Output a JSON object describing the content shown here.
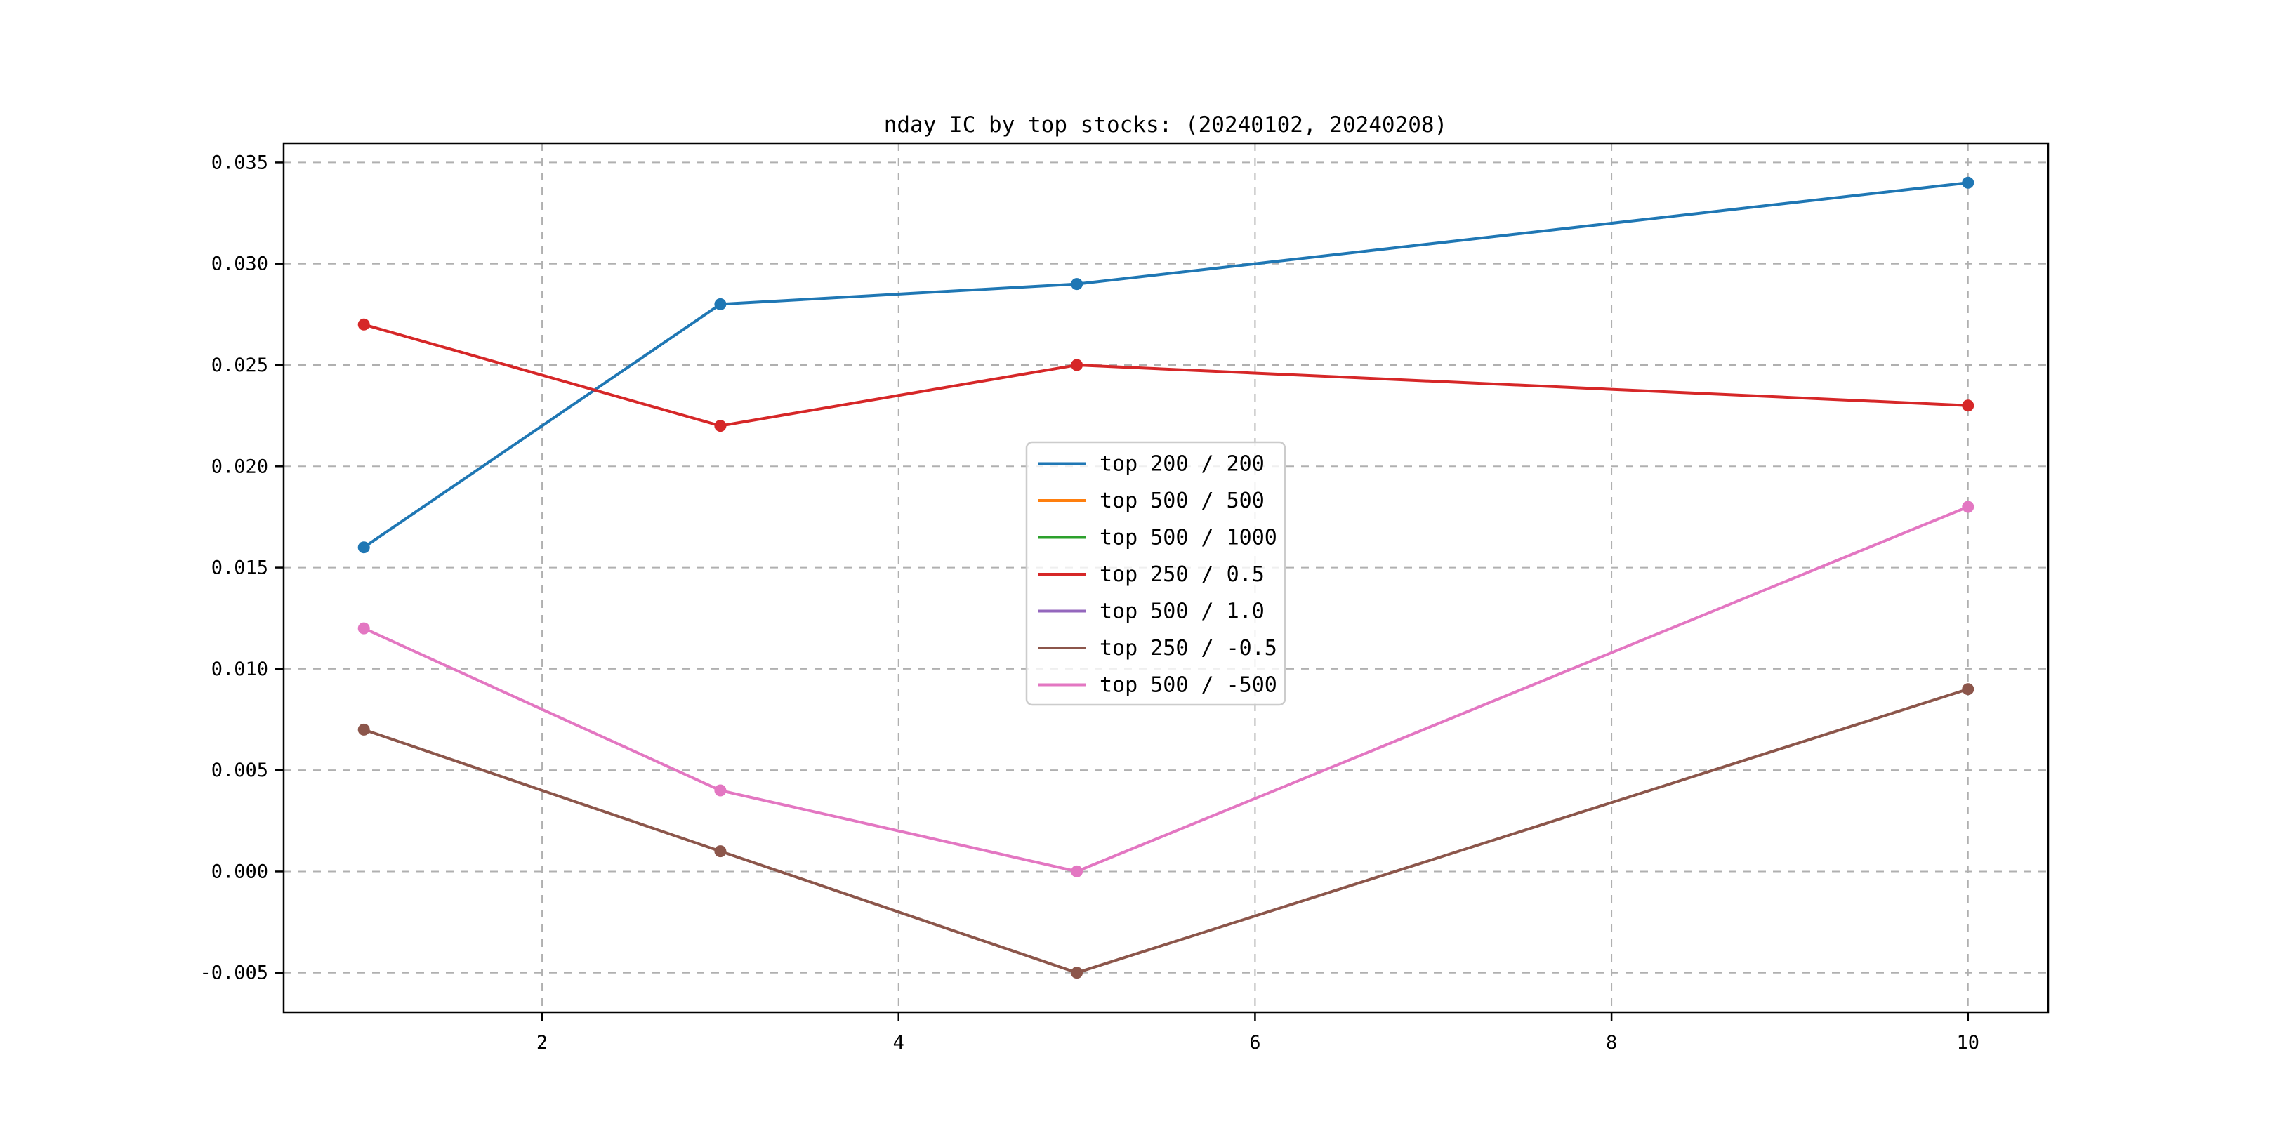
{
  "figure": {
    "title": "nday IC by top stocks: (20240102, 20240208)"
  },
  "chart_data": {
    "type": "line",
    "title": "nday IC by top stocks: (20240102, 20240208)",
    "x": [
      1,
      3,
      5,
      10
    ],
    "series": [
      {
        "name": "top 200 / 200",
        "color": "#1f77b4",
        "visible": true,
        "values": [
          0.016,
          0.028,
          0.029,
          0.034
        ]
      },
      {
        "name": "top 500 / 500",
        "color": "#ff7f0e",
        "visible": false,
        "values": []
      },
      {
        "name": "top 500 / 1000",
        "color": "#2ca02c",
        "visible": false,
        "values": []
      },
      {
        "name": "top 250 / 0.5",
        "color": "#d62728",
        "visible": true,
        "values": [
          0.027,
          0.022,
          0.025,
          0.023
        ]
      },
      {
        "name": "top 500 / 1.0",
        "color": "#9467bd",
        "visible": false,
        "values": []
      },
      {
        "name": "top 250 / -0.5",
        "color": "#8c564b",
        "visible": true,
        "values": [
          0.007,
          0.001,
          -0.005,
          0.009
        ]
      },
      {
        "name": "top 500 / -500",
        "color": "#e377c2",
        "visible": true,
        "values": [
          0.012,
          0.004,
          0.0,
          0.018
        ]
      }
    ],
    "x_tick_values": [
      2,
      4,
      6,
      8,
      10
    ],
    "x_tick_labels": [
      "2",
      "4",
      "6",
      "8",
      "10"
    ],
    "y_tick_values": [
      0.035,
      0.03,
      0.025,
      0.02,
      0.015,
      0.01,
      0.005,
      0.0,
      -0.005
    ],
    "y_tick_labels": [
      "0.035",
      "0.030",
      "0.025",
      "0.020",
      "0.015",
      "0.010",
      "0.005",
      "0.000",
      "-0.005"
    ],
    "xlim": [
      0.55,
      10.45
    ],
    "ylim": [
      -0.00695,
      0.03595
    ],
    "grid": true,
    "grid_style": "dashed",
    "marker": "circle",
    "legend": {
      "position": "center",
      "entries": [
        "top 200 / 200",
        "top 500 / 500",
        "top 500 / 1000",
        "top 250 / 0.5",
        "top 500 / 1.0",
        "top 250 / -0.5",
        "top 500 / -500"
      ]
    },
    "colors": {
      "background": "#ffffff",
      "text": "#000000",
      "grid": "#b0b0b0",
      "spine": "#000000",
      "legend_border": "#cccccc"
    }
  }
}
